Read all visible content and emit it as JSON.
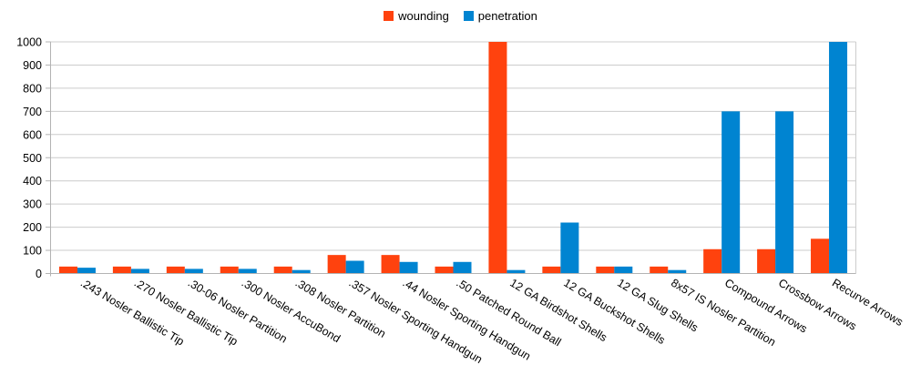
{
  "chart_data": {
    "type": "bar",
    "title": "",
    "categories": [
      ".243 Nosler Ballistic Tip",
      ".270 Nosler Ballistic Tip",
      ".30-06 Nosler Partition",
      ".300 Nosler AccuBond",
      ".308 Nosler Partition",
      ".357 Nosler Sporting Handgun",
      ".44 Nosler Sporting Handgun",
      ".50 Patched Round Ball",
      "12 GA Birdshot Shells",
      "12 GA Buckshot Shells",
      "12 GA Slug Shells",
      "8x57 IS Nosler Partition",
      "Compound Arrows",
      "Crossbow Arrows",
      "Recurve Arrows"
    ],
    "series": [
      {
        "name": "wounding",
        "color": "#FF420E",
        "values": [
          30,
          30,
          30,
          30,
          30,
          80,
          80,
          30,
          1000,
          30,
          30,
          30,
          105,
          105,
          150
        ]
      },
      {
        "name": "penetration",
        "color": "#0084D1",
        "values": [
          25,
          20,
          20,
          20,
          15,
          55,
          50,
          50,
          15,
          220,
          30,
          15,
          700,
          700,
          1000
        ]
      }
    ],
    "xlabel": "",
    "ylabel": "",
    "ylim": [
      0,
      1000
    ],
    "yticks": [
      0,
      100,
      200,
      300,
      400,
      500,
      600,
      700,
      800,
      900,
      1000
    ],
    "grid": true,
    "legend_position": "top",
    "colors": {
      "grid": "#cccccc",
      "axis": "#b3b3b3",
      "text": "#000000",
      "background": "#ffffff"
    }
  }
}
